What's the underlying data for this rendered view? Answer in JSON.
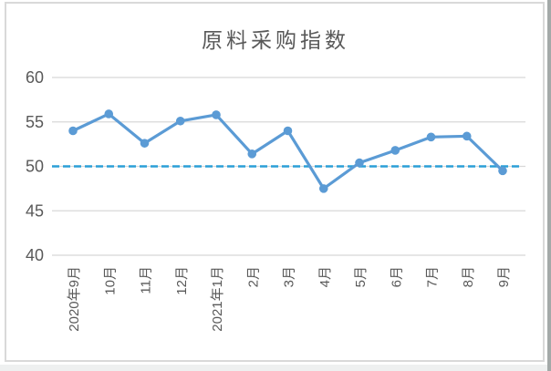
{
  "chart_data": {
    "type": "line",
    "title": "原料采购指数",
    "categories": [
      "2020年9月",
      "10月",
      "11月",
      "12月",
      "2021年1月",
      "2月",
      "3月",
      "4月",
      "5月",
      "6月",
      "7月",
      "8月",
      "9月"
    ],
    "series": [
      {
        "name": "原料采购指数",
        "values": [
          54.0,
          55.9,
          52.6,
          55.1,
          55.8,
          51.4,
          54.0,
          47.5,
          50.4,
          51.8,
          53.3,
          53.4,
          49.5
        ]
      }
    ],
    "reference_line": {
      "value": 50,
      "style": "dashed"
    },
    "ylim": [
      40,
      60
    ],
    "yticks": [
      60,
      55,
      50,
      45,
      40
    ],
    "xlabel": "",
    "ylabel": "",
    "legend": "none",
    "grid": "horizontal",
    "colors": {
      "series": "#5B9BD5",
      "reference": "#2B9FD7",
      "gridline": "#D8D8D8",
      "text": "#595959",
      "frame_border": "#D9D9D9",
      "background": "#FFFFFF"
    }
  }
}
